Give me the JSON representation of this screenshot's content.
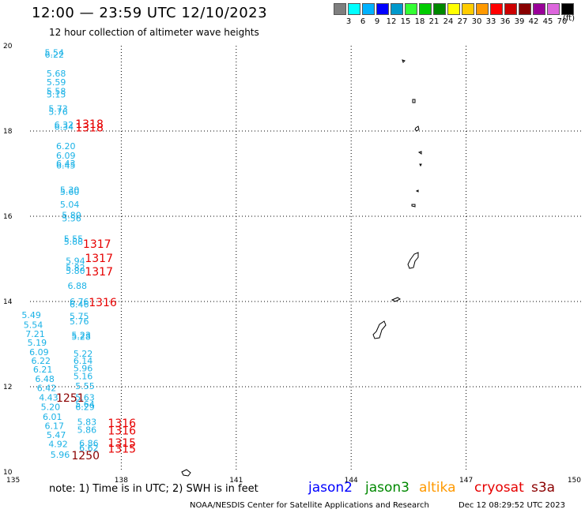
{
  "title": "12:00 — 23:59 UTC 12/10/2023",
  "subtitle": "12 hour collection of altimeter wave heights",
  "legend": {
    "units": "(ft)",
    "bins": [
      {
        "label": "",
        "color": "#7f7f7f"
      },
      {
        "label": "3",
        "color": "#00ffff"
      },
      {
        "label": "6",
        "color": "#00b2ff"
      },
      {
        "label": "9",
        "color": "#0000ff"
      },
      {
        "label": "12",
        "color": "#0099cc"
      },
      {
        "label": "15",
        "color": "#33ff33"
      },
      {
        "label": "18",
        "color": "#00cc00"
      },
      {
        "label": "21",
        "color": "#008800"
      },
      {
        "label": "24",
        "color": "#ffff00"
      },
      {
        "label": "27",
        "color": "#ffcc00"
      },
      {
        "label": "30",
        "color": "#ff9900"
      },
      {
        "label": "33",
        "color": "#ff0000"
      },
      {
        "label": "36",
        "color": "#cc0000"
      },
      {
        "label": "39",
        "color": "#880000"
      },
      {
        "label": "42",
        "color": "#990099"
      },
      {
        "label": "45",
        "color": "#dd66dd"
      },
      {
        "label": "70",
        "color": "#000000"
      }
    ]
  },
  "axes": {
    "lon_ticks": [
      "135",
      "138",
      "141",
      "144",
      "147",
      "150"
    ],
    "lat_ticks": [
      "20",
      "18",
      "16",
      "14",
      "12",
      "10"
    ]
  },
  "colors": {
    "obs": "#1ab2e6",
    "pass_red": "#e60000",
    "pass_dark": "#8b0000",
    "coast": "#000000",
    "grid": "#000000"
  },
  "observations": [
    {
      "text": "5.54",
      "lon": 136.0,
      "lat": 19.77
    },
    {
      "text": "6.22",
      "lon": 136.0,
      "lat": 19.72
    },
    {
      "text": "5.68",
      "lon": 136.05,
      "lat": 19.28
    },
    {
      "text": "5.59",
      "lon": 136.05,
      "lat": 19.07
    },
    {
      "text": "5.58",
      "lon": 136.05,
      "lat": 18.86
    },
    {
      "text": "5.15",
      "lon": 136.05,
      "lat": 18.79
    },
    {
      "text": "5.73",
      "lon": 136.1,
      "lat": 18.45
    },
    {
      "text": "5.76",
      "lon": 136.1,
      "lat": 18.38
    },
    {
      "text": "6.32",
      "lon": 136.25,
      "lat": 18.07
    },
    {
      "text": "6.34",
      "lon": 136.25,
      "lat": 18.03
    },
    {
      "text": "6.20",
      "lon": 136.3,
      "lat": 17.57
    },
    {
      "text": "6.09",
      "lon": 136.3,
      "lat": 17.35
    },
    {
      "text": "6.43",
      "lon": 136.3,
      "lat": 17.17
    },
    {
      "text": "6.45",
      "lon": 136.3,
      "lat": 17.12
    },
    {
      "text": "5.30",
      "lon": 136.4,
      "lat": 16.55
    },
    {
      "text": "5.60",
      "lon": 136.4,
      "lat": 16.5
    },
    {
      "text": "5.04",
      "lon": 136.4,
      "lat": 16.2
    },
    {
      "text": "5.80",
      "lon": 136.45,
      "lat": 15.95
    },
    {
      "text": "5.56",
      "lon": 136.45,
      "lat": 15.88
    },
    {
      "text": "5.55",
      "lon": 136.5,
      "lat": 15.4
    },
    {
      "text": "5.88",
      "lon": 136.5,
      "lat": 15.33
    },
    {
      "text": "5.94",
      "lon": 136.55,
      "lat": 14.88
    },
    {
      "text": "5.82",
      "lon": 136.55,
      "lat": 14.72
    },
    {
      "text": "5.80",
      "lon": 136.55,
      "lat": 14.65
    },
    {
      "text": "6.88",
      "lon": 136.6,
      "lat": 14.3
    },
    {
      "text": "6.76",
      "lon": 136.65,
      "lat": 13.93
    },
    {
      "text": "6.46",
      "lon": 136.65,
      "lat": 13.86
    },
    {
      "text": "5.49",
      "lon": 135.4,
      "lat": 13.61
    },
    {
      "text": "5.75",
      "lon": 136.65,
      "lat": 13.58
    },
    {
      "text": "5.54",
      "lon": 135.45,
      "lat": 13.38
    },
    {
      "text": "5.76",
      "lon": 136.65,
      "lat": 13.46
    },
    {
      "text": "7.21",
      "lon": 135.5,
      "lat": 13.17
    },
    {
      "text": "5.23",
      "lon": 136.7,
      "lat": 13.14
    },
    {
      "text": "5.28",
      "lon": 136.7,
      "lat": 13.1
    },
    {
      "text": "5.19",
      "lon": 135.55,
      "lat": 12.96
    },
    {
      "text": "6.09",
      "lon": 135.6,
      "lat": 12.74
    },
    {
      "text": "5.22",
      "lon": 136.75,
      "lat": 12.7
    },
    {
      "text": "6.22",
      "lon": 135.65,
      "lat": 12.54
    },
    {
      "text": "6.14",
      "lon": 136.75,
      "lat": 12.54
    },
    {
      "text": "6.21",
      "lon": 135.7,
      "lat": 12.33
    },
    {
      "text": "5.96",
      "lon": 136.75,
      "lat": 12.36
    },
    {
      "text": "5.16",
      "lon": 136.75,
      "lat": 12.18
    },
    {
      "text": "6.48",
      "lon": 135.75,
      "lat": 12.11
    },
    {
      "text": "5.55",
      "lon": 136.8,
      "lat": 11.94
    },
    {
      "text": "6.42",
      "lon": 135.8,
      "lat": 11.9
    },
    {
      "text": "5.63",
      "lon": 136.8,
      "lat": 11.68
    },
    {
      "text": "4.43",
      "lon": 135.85,
      "lat": 11.68
    },
    {
      "text": "5.64",
      "lon": 136.8,
      "lat": 11.52
    },
    {
      "text": "6.29",
      "lon": 136.8,
      "lat": 11.45
    },
    {
      "text": "5.20",
      "lon": 135.9,
      "lat": 11.45
    },
    {
      "text": "6.01",
      "lon": 135.95,
      "lat": 11.22
    },
    {
      "text": "5.83",
      "lon": 136.85,
      "lat": 11.1
    },
    {
      "text": "6.17",
      "lon": 136.0,
      "lat": 11.01
    },
    {
      "text": "5.86",
      "lon": 136.85,
      "lat": 10.92
    },
    {
      "text": "5.47",
      "lon": 136.05,
      "lat": 10.8
    },
    {
      "text": "6.86",
      "lon": 136.9,
      "lat": 10.6
    },
    {
      "text": "4.92",
      "lon": 136.1,
      "lat": 10.58
    },
    {
      "text": "6.62",
      "lon": 136.9,
      "lat": 10.49
    },
    {
      "text": "5.96",
      "lon": 136.15,
      "lat": 10.33
    }
  ],
  "pass_times": [
    {
      "text": "1318",
      "lon": 136.8,
      "lat": 18.07,
      "color": "#e60000"
    },
    {
      "text": "1318",
      "lon": 136.8,
      "lat": 17.99,
      "color": "#e60000"
    },
    {
      "text": "1317",
      "lon": 137.0,
      "lat": 15.26,
      "color": "#e60000"
    },
    {
      "text": "1317",
      "lon": 137.05,
      "lat": 14.93,
      "color": "#e60000"
    },
    {
      "text": "1317",
      "lon": 137.05,
      "lat": 14.61,
      "color": "#e60000"
    },
    {
      "text": "1316",
      "lon": 137.15,
      "lat": 13.89,
      "color": "#e60000"
    },
    {
      "text": "1251",
      "lon": 136.3,
      "lat": 11.65,
      "color": "#8b0000"
    },
    {
      "text": "1316",
      "lon": 137.65,
      "lat": 11.06,
      "color": "#e60000"
    },
    {
      "text": "1316",
      "lon": 137.65,
      "lat": 10.88,
      "color": "#e60000"
    },
    {
      "text": "1315",
      "lon": 137.65,
      "lat": 10.59,
      "color": "#e60000"
    },
    {
      "text": "1315",
      "lon": 137.65,
      "lat": 10.45,
      "color": "#e60000"
    },
    {
      "text": "1250",
      "lon": 136.7,
      "lat": 10.3,
      "color": "#8b0000"
    }
  ],
  "note": "note: 1) Time is in UTC; 2) SWH is in feet",
  "satellites": [
    {
      "name": "jason2",
      "color": "#0000ff"
    },
    {
      "name": "jason3",
      "color": "#008800"
    },
    {
      "name": "altika",
      "color": "#ff9900"
    },
    {
      "name": "cryosat",
      "color": "#e60000"
    },
    {
      "name": "s3a",
      "color": "#8b0000"
    }
  ],
  "credit": "NOAA/NESDIS Center for Satellite Applications and Research",
  "timestamp": "Dec 12 08:29:52 UTC 2023"
}
